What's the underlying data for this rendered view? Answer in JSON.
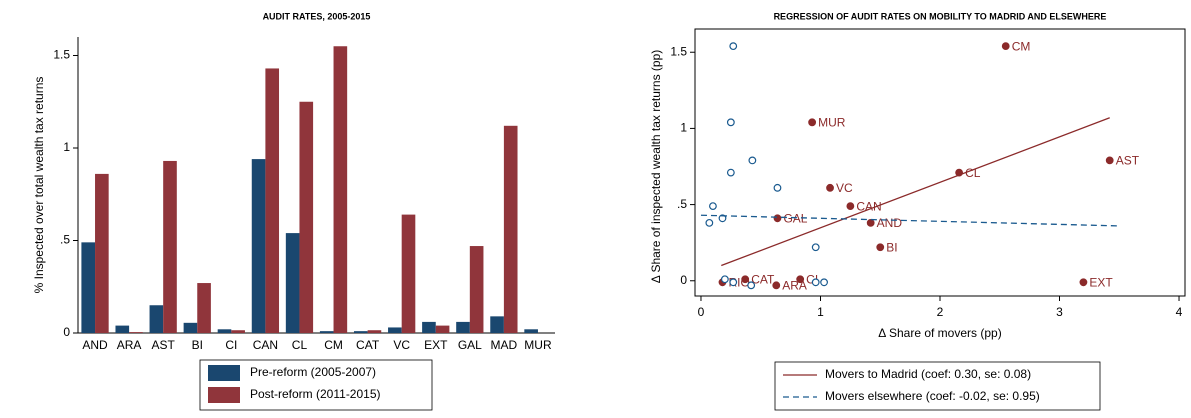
{
  "chart_data": [
    {
      "type": "bar",
      "title": "AUDIT RATES, 2005-2015",
      "y_label": "% Inspected over total wealth tax returns",
      "categories": [
        "AND",
        "ARA",
        "AST",
        "BI",
        "CI",
        "CAN",
        "CL",
        "CM",
        "CAT",
        "VC",
        "EXT",
        "GAL",
        "MAD",
        "MUR"
      ],
      "series": [
        {
          "name": "Pre-reform (2005-2007)",
          "color": "#1a476f",
          "values": [
            0.49,
            0.04,
            0.15,
            0.055,
            0.02,
            0.94,
            0.54,
            0.01,
            0.01,
            0.03,
            0.06,
            0.06,
            0.09,
            0.02
          ]
        },
        {
          "name": "Post-reform (2011-2015)",
          "color": "#90353b",
          "values": [
            0.86,
            0.005,
            0.93,
            0.27,
            0.015,
            1.43,
            1.25,
            1.55,
            0.015,
            0.64,
            0.04,
            0.47,
            1.12,
            0
          ]
        }
      ],
      "ylim": [
        0,
        1.6
      ],
      "yticks": [
        0,
        {
          "value": 0.5,
          "label": ".5"
        },
        1,
        1.5
      ],
      "legend": "bottom"
    },
    {
      "type": "scatter",
      "title": "REGRESSION OF AUDIT RATES ON MOBILITY TO MADRID AND ELSEWHERE",
      "x_label": "Δ Share of movers (pp)",
      "y_label": "Δ Share of inspected wealth tax returns (pp)",
      "series": [
        {
          "name": "Movers to Madrid (coef: 0.30, se: 0.08)",
          "color": "#8b2a2a",
          "filled": true,
          "dash": false,
          "labels": [
            "CM",
            "MUR",
            "AST",
            "CL",
            "VC",
            "CAN",
            "GAL",
            "AND",
            "BI",
            "CAT",
            "CI",
            "RIO",
            "ARA",
            "EXT"
          ],
          "x": [
            2.55,
            0.93,
            3.42,
            2.16,
            1.08,
            1.25,
            0.64,
            1.42,
            1.5,
            0.37,
            0.83,
            0.18,
            0.63,
            3.2
          ],
          "values": [
            1.54,
            1.04,
            0.79,
            0.71,
            0.61,
            0.49,
            0.41,
            0.38,
            0.22,
            0.01,
            0.01,
            -0.01,
            -0.03,
            -0.01
          ],
          "fit": {
            "x": [
              0.17,
              3.42
            ],
            "values": [
              0.1,
              1.07
            ]
          }
        },
        {
          "name": "Movers elsewhere (coef: -0.02, se: 0.95)",
          "color": "#1a5a8f",
          "filled": false,
          "dash": true,
          "x": [
            0.27,
            0.25,
            0.25,
            0.43,
            0.64,
            0.1,
            0.18,
            0.07,
            0.96,
            0.2,
            0.27,
            0.42,
            0.96,
            1.03
          ],
          "values": [
            1.54,
            1.04,
            0.71,
            0.79,
            0.61,
            0.49,
            0.41,
            0.38,
            0.22,
            0.01,
            -0.01,
            -0.03,
            -0.01,
            -0.01
          ],
          "fit": {
            "x": [
              0,
              3.5
            ],
            "values": [
              0.43,
              0.36
            ]
          }
        }
      ],
      "xlim": [
        -0.05,
        4.05
      ],
      "xticks": [
        0,
        1,
        2,
        3,
        4
      ],
      "ylim": [
        -0.1,
        1.6
      ],
      "yticks": [
        0,
        {
          "value": 0.5,
          "label": ".5"
        },
        1,
        1.5
      ],
      "legend": "bottom"
    }
  ]
}
